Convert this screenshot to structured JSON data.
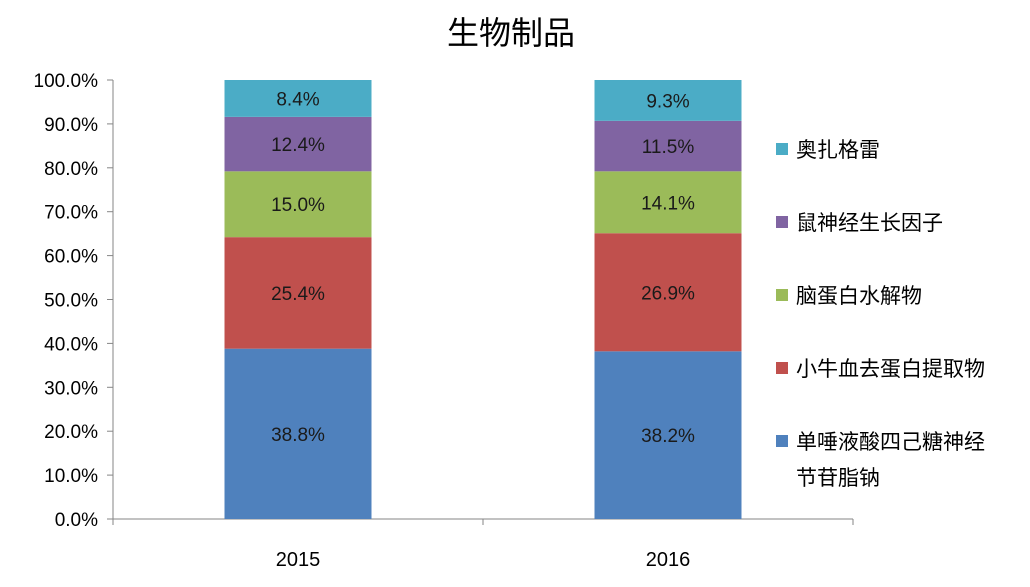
{
  "chart_data": {
    "type": "bar",
    "stacked": true,
    "percent": true,
    "title": "生物制品",
    "categories": [
      "2015",
      "2016"
    ],
    "ylim": [
      0,
      100
    ],
    "yticks": [
      "0.0%",
      "10.0%",
      "20.0%",
      "30.0%",
      "40.0%",
      "50.0%",
      "60.0%",
      "70.0%",
      "80.0%",
      "90.0%",
      "100.0%"
    ],
    "grid": false,
    "legend_position": "right",
    "series": [
      {
        "name": "单唾液酸四己糖神经节苷脂钠",
        "legend_lines": [
          "单唾液酸四己糖神经",
          "节苷脂钠"
        ],
        "color": "#4f81bd",
        "values": [
          38.8,
          38.2
        ],
        "labels": [
          "38.8%",
          "38.2%"
        ]
      },
      {
        "name": "小牛血去蛋白提取物",
        "legend_lines": [
          "小牛血去蛋白提取物"
        ],
        "color": "#c0504d",
        "values": [
          25.4,
          26.9
        ],
        "labels": [
          "25.4%",
          "26.9%"
        ]
      },
      {
        "name": "脑蛋白水解物",
        "legend_lines": [
          "脑蛋白水解物"
        ],
        "color": "#9bbb59",
        "values": [
          15.0,
          14.1
        ],
        "labels": [
          "15.0%",
          "14.1%"
        ]
      },
      {
        "name": "鼠神经生长因子",
        "legend_lines": [
          "鼠神经生长因子"
        ],
        "color": "#8064a2",
        "values": [
          12.4,
          11.5
        ],
        "labels": [
          "12.4%",
          "11.5%"
        ]
      },
      {
        "name": "奥扎格雷",
        "legend_lines": [
          "奥扎格雷"
        ],
        "color": "#4bacc6",
        "values": [
          8.4,
          9.3
        ],
        "labels": [
          "8.4%",
          "9.3%"
        ]
      }
    ]
  }
}
